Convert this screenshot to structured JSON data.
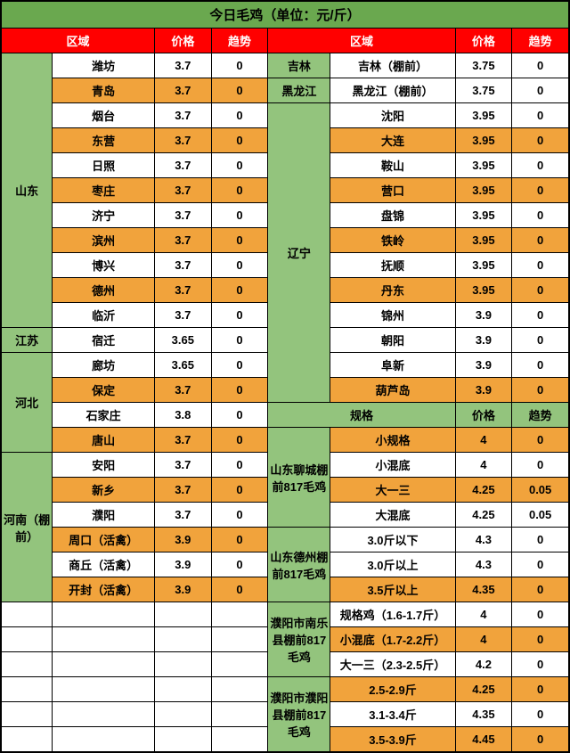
{
  "title": "今日毛鸡（单位：元/斤）",
  "headers": {
    "region": "区域",
    "price": "价格",
    "trend": "趋势"
  },
  "left": [
    {
      "region": "山东",
      "rows": [
        {
          "city": "潍坊",
          "price": "3.7",
          "trend": "0",
          "alt": false
        },
        {
          "city": "青岛",
          "price": "3.7",
          "trend": "0",
          "alt": true
        },
        {
          "city": "烟台",
          "price": "3.7",
          "trend": "0",
          "alt": false
        },
        {
          "city": "东营",
          "price": "3.7",
          "trend": "0",
          "alt": true
        },
        {
          "city": "日照",
          "price": "3.7",
          "trend": "0",
          "alt": false
        },
        {
          "city": "枣庄",
          "price": "3.7",
          "trend": "0",
          "alt": true
        },
        {
          "city": "济宁",
          "price": "3.7",
          "trend": "0",
          "alt": false
        },
        {
          "city": "滨州",
          "price": "3.7",
          "trend": "0",
          "alt": true
        },
        {
          "city": "博兴",
          "price": "3.7",
          "trend": "0",
          "alt": false
        },
        {
          "city": "德州",
          "price": "3.7",
          "trend": "0",
          "alt": true
        },
        {
          "city": "临沂",
          "price": "3.7",
          "trend": "0",
          "alt": false
        }
      ]
    },
    {
      "region": "江苏",
      "rows": [
        {
          "city": "宿迁",
          "price": "3.65",
          "trend": "0",
          "alt": false
        }
      ]
    },
    {
      "region": "河北",
      "rows": [
        {
          "city": "廊坊",
          "price": "3.65",
          "trend": "0",
          "alt": false
        },
        {
          "city": "保定",
          "price": "3.7",
          "trend": "0",
          "alt": true
        },
        {
          "city": "石家庄",
          "price": "3.8",
          "trend": "0",
          "alt": false
        },
        {
          "city": "唐山",
          "price": "3.7",
          "trend": "0",
          "alt": true
        }
      ]
    },
    {
      "region": "河南（棚前）",
      "rows": [
        {
          "city": "安阳",
          "price": "3.7",
          "trend": "0",
          "alt": false
        },
        {
          "city": "新乡",
          "price": "3.7",
          "trend": "0",
          "alt": true
        },
        {
          "city": "濮阳",
          "price": "3.7",
          "trend": "0",
          "alt": false
        },
        {
          "city": "周口（活禽）",
          "price": "3.9",
          "trend": "0",
          "alt": true
        },
        {
          "city": "商丘（活禽）",
          "price": "3.9",
          "trend": "0",
          "alt": false
        },
        {
          "city": "开封（活禽）",
          "price": "3.9",
          "trend": "0",
          "alt": true
        }
      ]
    }
  ],
  "leftBlanks": 6,
  "right": [
    {
      "region": "吉林",
      "rows": [
        {
          "city": "吉林（棚前）",
          "price": "3.75",
          "trend": "0",
          "alt": false
        }
      ]
    },
    {
      "region": "黑龙江",
      "rows": [
        {
          "city": "黑龙江（棚前）",
          "price": "3.75",
          "trend": "0",
          "alt": false
        }
      ]
    },
    {
      "region": "辽宁",
      "rows": [
        {
          "city": "沈阳",
          "price": "3.95",
          "trend": "0",
          "alt": false
        },
        {
          "city": "大连",
          "price": "3.95",
          "trend": "0",
          "alt": true
        },
        {
          "city": "鞍山",
          "price": "3.95",
          "trend": "0",
          "alt": false
        },
        {
          "city": "营口",
          "price": "3.95",
          "trend": "0",
          "alt": true
        },
        {
          "city": "盘锦",
          "price": "3.95",
          "trend": "0",
          "alt": false
        },
        {
          "city": "铁岭",
          "price": "3.95",
          "trend": "0",
          "alt": true
        },
        {
          "city": "抚顺",
          "price": "3.95",
          "trend": "0",
          "alt": false
        },
        {
          "city": "丹东",
          "price": "3.95",
          "trend": "0",
          "alt": true
        },
        {
          "city": "锦州",
          "price": "3.9",
          "trend": "0",
          "alt": false
        },
        {
          "city": "朝阳",
          "price": "3.9",
          "trend": "0",
          "alt": false
        },
        {
          "city": "阜新",
          "price": "3.9",
          "trend": "0",
          "alt": false
        },
        {
          "city": "葫芦岛",
          "price": "3.9",
          "trend": "0",
          "alt": true
        }
      ]
    },
    {
      "region": "",
      "subheader": true,
      "rows": [
        {
          "city": "规格",
          "price": "价格",
          "trend": "趋势",
          "alt": false
        }
      ]
    },
    {
      "region": "山东聊城棚前817毛鸡",
      "rows": [
        {
          "city": "小规格",
          "price": "4",
          "trend": "0",
          "alt": true
        },
        {
          "city": "小混底",
          "price": "4",
          "trend": "0",
          "alt": false
        },
        {
          "city": "大一三",
          "price": "4.25",
          "trend": "0.05",
          "alt": true
        },
        {
          "city": "大混底",
          "price": "4.25",
          "trend": "0.05",
          "alt": false
        }
      ]
    },
    {
      "region": "山东德州棚前817毛鸡",
      "rows": [
        {
          "city": "3.0斤以下",
          "price": "4.3",
          "trend": "0",
          "alt": false
        },
        {
          "city": "3.0斤以上",
          "price": "4.3",
          "trend": "0",
          "alt": false
        },
        {
          "city": "3.5斤以上",
          "price": "4.35",
          "trend": "0",
          "alt": true
        }
      ]
    },
    {
      "region": "濮阳市南乐县棚前817毛鸡",
      "rows": [
        {
          "city": "规格鸡（1.6-1.7斤）",
          "price": "4",
          "trend": "0",
          "alt": false
        },
        {
          "city": "小混底（1.7-2.2斤）",
          "price": "4",
          "trend": "0",
          "alt": true
        },
        {
          "city": "大一三（2.3-2.5斤）",
          "price": "4.2",
          "trend": "0",
          "alt": false
        }
      ]
    },
    {
      "region": "濮阳市濮阳县棚前817毛鸡",
      "rows": [
        {
          "city": "2.5-2.9斤",
          "price": "4.25",
          "trend": "0",
          "alt": true
        },
        {
          "city": "3.1-3.4斤",
          "price": "4.35",
          "trend": "0",
          "alt": false
        },
        {
          "city": "3.5-3.9斤",
          "price": "4.45",
          "trend": "0",
          "alt": true
        }
      ]
    }
  ],
  "colors": {
    "green_light": "#93c47d",
    "green_title": "#6aa84f",
    "red": "#ff0000",
    "orange": "#f1a33c",
    "white": "#ffffff",
    "border": "#000000"
  }
}
